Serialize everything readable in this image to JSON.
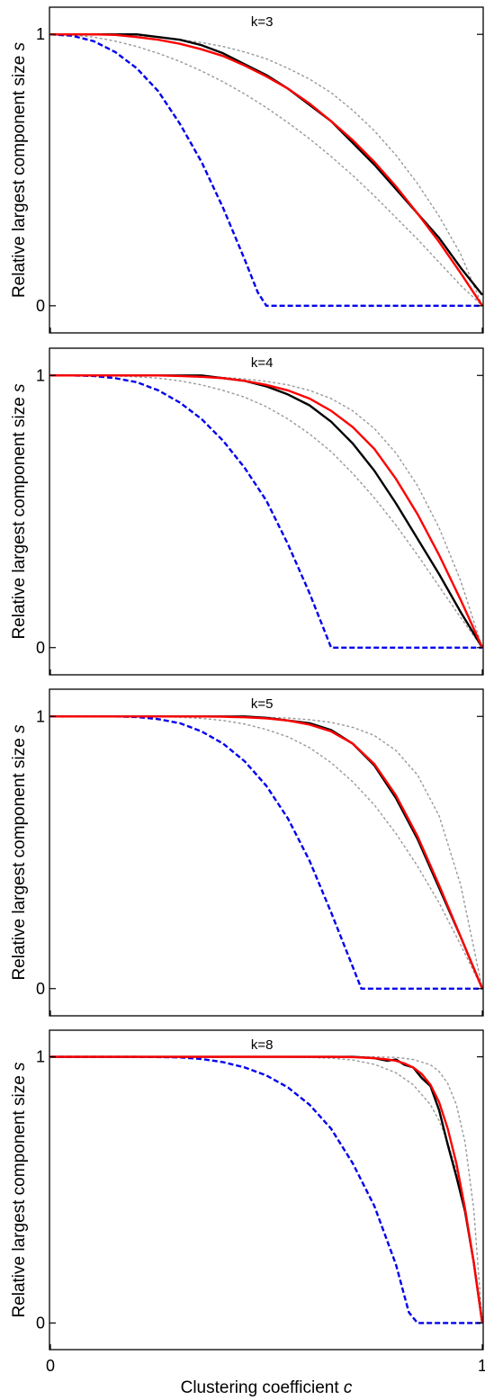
{
  "figure": {
    "ylabel": "Relative largest component size",
    "ylabel_symbol": "s",
    "xlabel": "Clustering coefficient",
    "xlabel_symbol": "c",
    "xticks": [
      "0",
      "1"
    ],
    "yticks": [
      "0",
      "1"
    ]
  },
  "colors": {
    "simulation": "#000000",
    "theory": "#ff0000",
    "lower_bound": "#0000ee",
    "bounds": "#999999"
  },
  "chart_data": [
    {
      "type": "line",
      "title": "k=3",
      "xlim": [
        0,
        1
      ],
      "ylim": [
        -0.1,
        1.1
      ],
      "xticks": [
        0,
        1
      ],
      "yticks": [
        0,
        1
      ],
      "grid": false,
      "series": [
        {
          "style": "simulation",
          "x": [
            0,
            0.05,
            0.1,
            0.15,
            0.2,
            0.25,
            0.3,
            0.35,
            0.4,
            0.45,
            0.5,
            0.55,
            0.6,
            0.65,
            0.7,
            0.75,
            0.8,
            0.85,
            0.9,
            0.95,
            1.0
          ],
          "y": [
            1.0,
            1.0,
            1.0,
            1.0,
            1.0,
            0.99,
            0.98,
            0.96,
            0.93,
            0.89,
            0.85,
            0.8,
            0.74,
            0.68,
            0.6,
            0.52,
            0.43,
            0.34,
            0.25,
            0.14,
            0.04
          ]
        },
        {
          "style": "theory",
          "x": [
            0,
            0.05,
            0.1,
            0.15,
            0.2,
            0.25,
            0.3,
            0.35,
            0.4,
            0.45,
            0.5,
            0.55,
            0.6,
            0.65,
            0.7,
            0.75,
            0.8,
            0.85,
            0.9,
            0.95,
            1.0
          ],
          "y": [
            1.0,
            1.0,
            1.0,
            0.998,
            0.99,
            0.98,
            0.965,
            0.945,
            0.92,
            0.885,
            0.845,
            0.8,
            0.745,
            0.68,
            0.61,
            0.53,
            0.44,
            0.34,
            0.235,
            0.12,
            0.0
          ]
        },
        {
          "style": "lower_bound",
          "x": [
            0,
            0.05,
            0.1,
            0.15,
            0.2,
            0.25,
            0.3,
            0.35,
            0.4,
            0.45,
            0.48,
            0.5,
            1.0
          ],
          "y": [
            1.0,
            0.995,
            0.975,
            0.935,
            0.875,
            0.79,
            0.67,
            0.53,
            0.36,
            0.17,
            0.05,
            0.0,
            0.0
          ]
        },
        {
          "style": "bounds",
          "x": [
            0,
            0.05,
            0.1,
            0.15,
            0.2,
            0.25,
            0.3,
            0.35,
            0.4,
            0.45,
            0.5,
            0.55,
            0.6,
            0.65,
            0.7,
            0.75,
            0.8,
            0.85,
            0.9,
            0.95,
            1.0
          ],
          "y": [
            1.0,
            1.0,
            1.0,
            0.998,
            0.995,
            0.99,
            0.98,
            0.97,
            0.955,
            0.935,
            0.91,
            0.875,
            0.835,
            0.785,
            0.72,
            0.645,
            0.555,
            0.45,
            0.33,
            0.19,
            0.0
          ]
        },
        {
          "style": "bounds",
          "x": [
            0,
            0.05,
            0.1,
            0.15,
            0.2,
            0.25,
            0.3,
            0.35,
            0.4,
            0.45,
            0.5,
            0.55,
            0.6,
            0.65,
            0.7,
            0.75,
            0.8,
            0.85,
            0.9,
            0.95,
            1.0
          ],
          "y": [
            1.0,
            0.998,
            0.99,
            0.975,
            0.955,
            0.93,
            0.9,
            0.865,
            0.825,
            0.78,
            0.73,
            0.675,
            0.615,
            0.55,
            0.48,
            0.405,
            0.325,
            0.245,
            0.16,
            0.075,
            0.0
          ]
        }
      ]
    },
    {
      "type": "line",
      "title": "k=4",
      "xlim": [
        0,
        1
      ],
      "ylim": [
        -0.1,
        1.1
      ],
      "xticks": [
        0,
        1
      ],
      "yticks": [
        0,
        1
      ],
      "grid": false,
      "series": [
        {
          "style": "simulation",
          "x": [
            0,
            0.05,
            0.1,
            0.15,
            0.2,
            0.25,
            0.3,
            0.35,
            0.4,
            0.45,
            0.5,
            0.55,
            0.6,
            0.65,
            0.7,
            0.75,
            0.8,
            0.85,
            0.9,
            0.95,
            1.0
          ],
          "y": [
            1.0,
            1.0,
            1.0,
            1.0,
            1.0,
            1.0,
            1.0,
            1.0,
            0.99,
            0.98,
            0.96,
            0.93,
            0.89,
            0.83,
            0.75,
            0.65,
            0.53,
            0.4,
            0.27,
            0.13,
            0.0
          ]
        },
        {
          "style": "theory",
          "x": [
            0,
            0.05,
            0.1,
            0.15,
            0.2,
            0.25,
            0.3,
            0.35,
            0.4,
            0.45,
            0.5,
            0.55,
            0.6,
            0.65,
            0.7,
            0.75,
            0.8,
            0.85,
            0.9,
            0.95,
            1.0
          ],
          "y": [
            1.0,
            1.0,
            1.0,
            1.0,
            1.0,
            1.0,
            0.998,
            0.995,
            0.99,
            0.98,
            0.965,
            0.945,
            0.915,
            0.87,
            0.81,
            0.73,
            0.62,
            0.49,
            0.34,
            0.175,
            0.0
          ]
        },
        {
          "style": "lower_bound",
          "x": [
            0,
            0.05,
            0.1,
            0.15,
            0.2,
            0.25,
            0.3,
            0.35,
            0.4,
            0.45,
            0.5,
            0.55,
            0.6,
            0.63,
            0.65,
            1.0
          ],
          "y": [
            1.0,
            1.0,
            0.998,
            0.99,
            0.975,
            0.945,
            0.9,
            0.84,
            0.76,
            0.66,
            0.54,
            0.38,
            0.2,
            0.08,
            0.0,
            0.0
          ]
        },
        {
          "style": "bounds",
          "x": [
            0,
            0.05,
            0.1,
            0.15,
            0.2,
            0.25,
            0.3,
            0.35,
            0.4,
            0.45,
            0.5,
            0.55,
            0.6,
            0.65,
            0.7,
            0.75,
            0.8,
            0.85,
            0.9,
            0.95,
            1.0
          ],
          "y": [
            1.0,
            1.0,
            1.0,
            1.0,
            1.0,
            1.0,
            0.999,
            0.997,
            0.993,
            0.987,
            0.978,
            0.965,
            0.945,
            0.915,
            0.87,
            0.805,
            0.715,
            0.595,
            0.44,
            0.245,
            0.0
          ]
        },
        {
          "style": "bounds",
          "x": [
            0,
            0.05,
            0.1,
            0.15,
            0.2,
            0.25,
            0.3,
            0.35,
            0.4,
            0.45,
            0.5,
            0.55,
            0.6,
            0.65,
            0.7,
            0.75,
            0.8,
            0.85,
            0.9,
            0.95,
            1.0
          ],
          "y": [
            1.0,
            1.0,
            1.0,
            0.998,
            0.995,
            0.99,
            0.98,
            0.965,
            0.945,
            0.92,
            0.885,
            0.84,
            0.785,
            0.72,
            0.64,
            0.55,
            0.45,
            0.34,
            0.225,
            0.11,
            0.0
          ]
        }
      ]
    },
    {
      "type": "line",
      "title": "k=5",
      "xlim": [
        0,
        1
      ],
      "ylim": [
        -0.1,
        1.1
      ],
      "xticks": [
        0,
        1
      ],
      "yticks": [
        0,
        1
      ],
      "grid": false,
      "series": [
        {
          "style": "simulation",
          "x": [
            0,
            0.05,
            0.1,
            0.15,
            0.2,
            0.25,
            0.3,
            0.35,
            0.4,
            0.45,
            0.5,
            0.55,
            0.6,
            0.65,
            0.7,
            0.75,
            0.8,
            0.85,
            0.9,
            0.95,
            1.0
          ],
          "y": [
            1.0,
            1.0,
            1.0,
            1.0,
            1.0,
            1.0,
            1.0,
            1.0,
            1.0,
            1.0,
            0.995,
            0.985,
            0.975,
            0.95,
            0.9,
            0.82,
            0.7,
            0.55,
            0.37,
            0.19,
            0.0
          ]
        },
        {
          "style": "theory",
          "x": [
            0,
            0.05,
            0.1,
            0.15,
            0.2,
            0.25,
            0.3,
            0.35,
            0.4,
            0.45,
            0.5,
            0.55,
            0.6,
            0.65,
            0.7,
            0.75,
            0.8,
            0.85,
            0.9,
            0.95,
            1.0
          ],
          "y": [
            1.0,
            1.0,
            1.0,
            1.0,
            1.0,
            1.0,
            1.0,
            1.0,
            0.999,
            0.997,
            0.993,
            0.985,
            0.97,
            0.945,
            0.9,
            0.825,
            0.71,
            0.56,
            0.38,
            0.19,
            0.0
          ]
        },
        {
          "style": "lower_bound",
          "x": [
            0,
            0.05,
            0.1,
            0.15,
            0.2,
            0.25,
            0.3,
            0.35,
            0.4,
            0.45,
            0.5,
            0.55,
            0.6,
            0.65,
            0.7,
            0.72,
            0.75,
            1.0
          ],
          "y": [
            1.0,
            1.0,
            1.0,
            1.0,
            0.998,
            0.99,
            0.975,
            0.945,
            0.9,
            0.835,
            0.745,
            0.625,
            0.47,
            0.28,
            0.08,
            0.0,
            0.0,
            0.0
          ]
        },
        {
          "style": "bounds",
          "x": [
            0,
            0.05,
            0.1,
            0.15,
            0.2,
            0.25,
            0.3,
            0.35,
            0.4,
            0.45,
            0.5,
            0.55,
            0.6,
            0.65,
            0.7,
            0.75,
            0.8,
            0.85,
            0.9,
            0.95,
            1.0
          ],
          "y": [
            1.0,
            1.0,
            1.0,
            1.0,
            1.0,
            1.0,
            1.0,
            1.0,
            1.0,
            0.999,
            0.997,
            0.994,
            0.988,
            0.978,
            0.96,
            0.93,
            0.875,
            0.785,
            0.635,
            0.38,
            0.0
          ]
        },
        {
          "style": "bounds",
          "x": [
            0,
            0.05,
            0.1,
            0.15,
            0.2,
            0.25,
            0.3,
            0.35,
            0.4,
            0.45,
            0.5,
            0.55,
            0.6,
            0.65,
            0.7,
            0.75,
            0.8,
            0.85,
            0.9,
            0.95,
            1.0
          ],
          "y": [
            1.0,
            1.0,
            1.0,
            1.0,
            1.0,
            0.999,
            0.997,
            0.993,
            0.985,
            0.972,
            0.952,
            0.925,
            0.885,
            0.83,
            0.76,
            0.675,
            0.57,
            0.45,
            0.315,
            0.16,
            0.0
          ]
        }
      ]
    },
    {
      "type": "line",
      "title": "k=8",
      "xlim": [
        0,
        1
      ],
      "ylim": [
        -0.1,
        1.1
      ],
      "xticks": [
        0,
        1
      ],
      "yticks": [
        0,
        1
      ],
      "grid": false,
      "series": [
        {
          "style": "simulation",
          "x": [
            0,
            0.1,
            0.2,
            0.3,
            0.4,
            0.5,
            0.6,
            0.65,
            0.7,
            0.75,
            0.78,
            0.8,
            0.82,
            0.84,
            0.86,
            0.88,
            0.9,
            0.92,
            0.94,
            0.96,
            0.98,
            1.0
          ],
          "y": [
            1.0,
            1.0,
            1.0,
            1.0,
            1.0,
            1.0,
            1.0,
            1.0,
            1.0,
            0.995,
            0.985,
            0.99,
            0.97,
            0.96,
            0.92,
            0.89,
            0.8,
            0.67,
            0.55,
            0.42,
            0.23,
            0.0
          ]
        },
        {
          "style": "theory",
          "x": [
            0,
            0.1,
            0.2,
            0.3,
            0.4,
            0.5,
            0.6,
            0.65,
            0.7,
            0.75,
            0.78,
            0.8,
            0.82,
            0.84,
            0.86,
            0.88,
            0.9,
            0.92,
            0.94,
            0.96,
            0.98,
            1.0
          ],
          "y": [
            1.0,
            1.0,
            1.0,
            1.0,
            1.0,
            1.0,
            1.0,
            1.0,
            0.999,
            0.995,
            0.99,
            0.985,
            0.975,
            0.96,
            0.935,
            0.895,
            0.83,
            0.73,
            0.6,
            0.43,
            0.23,
            0.0
          ]
        },
        {
          "style": "lower_bound",
          "x": [
            0,
            0.1,
            0.2,
            0.3,
            0.35,
            0.4,
            0.45,
            0.5,
            0.55,
            0.6,
            0.65,
            0.7,
            0.75,
            0.8,
            0.83,
            0.85,
            1.0
          ],
          "y": [
            1.0,
            1.0,
            1.0,
            0.998,
            0.992,
            0.98,
            0.96,
            0.93,
            0.885,
            0.82,
            0.73,
            0.6,
            0.44,
            0.22,
            0.04,
            0.0,
            0.0
          ]
        },
        {
          "style": "bounds",
          "x": [
            0,
            0.1,
            0.2,
            0.3,
            0.4,
            0.5,
            0.6,
            0.65,
            0.7,
            0.75,
            0.8,
            0.84,
            0.88,
            0.9,
            0.92,
            0.94,
            0.96,
            0.98,
            1.0
          ],
          "y": [
            1.0,
            1.0,
            1.0,
            1.0,
            1.0,
            1.0,
            1.0,
            1.0,
            1.0,
            1.0,
            0.998,
            0.99,
            0.97,
            0.945,
            0.9,
            0.82,
            0.68,
            0.43,
            0.0
          ]
        },
        {
          "style": "bounds",
          "x": [
            0,
            0.1,
            0.2,
            0.3,
            0.4,
            0.5,
            0.6,
            0.65,
            0.7,
            0.75,
            0.8,
            0.84,
            0.88,
            0.9,
            0.92,
            0.94,
            0.96,
            0.98,
            1.0
          ],
          "y": [
            1.0,
            1.0,
            1.0,
            1.0,
            1.0,
            1.0,
            0.998,
            0.995,
            0.988,
            0.972,
            0.94,
            0.895,
            0.82,
            0.76,
            0.68,
            0.57,
            0.43,
            0.24,
            0.0
          ]
        }
      ]
    }
  ]
}
